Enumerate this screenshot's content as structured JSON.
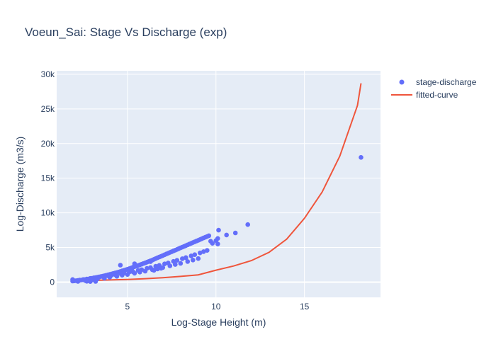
{
  "chart_data": {
    "type": "scatter",
    "title": "Voeun_Sai: Stage Vs Discharge (exp)",
    "xlabel": "Log-Stage Height (m)",
    "ylabel": "Log-Discharge (m3/s)",
    "xlim": [
      1.0,
      19.3
    ],
    "ylim": [
      -2200,
      30500
    ],
    "xticks": [
      5,
      10,
      15
    ],
    "xtick_labels": [
      "5",
      "10",
      "15"
    ],
    "yticks": [
      0,
      5000,
      10000,
      15000,
      20000,
      25000,
      30000
    ],
    "ytick_labels": [
      "0",
      "5k",
      "10k",
      "15k",
      "20k",
      "25k",
      "30k"
    ],
    "grid": true,
    "legend_position": "top-right",
    "colors": {
      "scatter": "#636efa",
      "line": "#ef553b",
      "plot_bg": "#e5ecf6",
      "grid": "#ffffff"
    },
    "series": [
      {
        "name": "stage-discharge",
        "type": "scatter",
        "x": [
          1.9,
          2.0,
          2.1,
          2.2,
          2.3,
          2.4,
          2.5,
          2.6,
          2.7,
          2.8,
          2.9,
          3.0,
          3.1,
          3.2,
          3.3,
          3.4,
          3.5,
          3.6,
          3.7,
          3.8,
          3.9,
          4.0,
          4.1,
          4.2,
          4.3,
          4.4,
          4.5,
          4.6,
          4.7,
          4.8,
          4.9,
          5.0,
          5.1,
          5.2,
          5.3,
          5.4,
          5.5,
          5.6,
          5.7,
          5.8,
          5.9,
          6.0,
          6.1,
          6.2,
          6.3,
          6.4,
          6.5,
          6.6,
          6.7,
          6.8,
          6.9,
          7.0,
          7.1,
          7.2,
          7.3,
          7.4,
          7.5,
          7.6,
          7.7,
          7.8,
          7.9,
          8.0,
          8.1,
          8.2,
          8.3,
          8.4,
          8.5,
          8.6,
          8.7,
          8.8,
          8.9,
          9.0,
          9.1,
          9.2,
          9.3,
          9.4,
          9.5,
          9.6,
          2.0,
          2.3,
          2.5,
          2.7,
          2.9,
          3.1,
          3.4,
          3.6,
          3.9,
          4.1,
          4.3,
          4.6,
          4.8,
          5.1,
          5.3,
          5.6,
          5.8,
          6.1,
          6.3,
          6.6,
          6.8,
          7.1,
          7.3,
          7.6,
          7.8,
          8.1,
          8.3,
          8.6,
          8.8,
          9.1,
          9.3,
          9.5,
          2.2,
          2.6,
          3.0,
          3.3,
          3.7,
          4.0,
          4.4,
          4.7,
          5.0,
          5.4,
          5.7,
          6.0,
          6.4,
          6.7,
          7.0,
          7.4,
          7.7,
          8.0,
          8.4,
          8.7,
          9.0,
          2.7,
          2.9,
          3.2,
          1.9,
          4.6,
          5.4,
          6.3,
          6.7,
          6.5,
          5.3,
          6.9,
          8.3,
          9.7,
          9.8,
          10.0,
          10.1,
          10.15,
          10.1,
          10.6,
          11.1,
          11.8,
          18.2
        ],
        "y": [
          150,
          180,
          210,
          240,
          270,
          300,
          340,
          380,
          420,
          460,
          500,
          550,
          600,
          650,
          700,
          750,
          810,
          870,
          930,
          990,
          1050,
          1110,
          1180,
          1250,
          1320,
          1390,
          1460,
          1540,
          1620,
          1700,
          1780,
          1860,
          1950,
          2040,
          2130,
          2220,
          2310,
          2400,
          2490,
          2580,
          2680,
          2780,
          2880,
          2980,
          3080,
          3180,
          3290,
          3400,
          3510,
          3620,
          3730,
          3840,
          3950,
          4060,
          4170,
          4280,
          4390,
          4500,
          4610,
          4720,
          4830,
          4940,
          5050,
          5160,
          5270,
          5380,
          5490,
          5600,
          5710,
          5820,
          5930,
          6040,
          6150,
          6260,
          6370,
          6480,
          6590,
          6700,
          200,
          300,
          380,
          450,
          540,
          620,
          720,
          800,
          920,
          1000,
          1090,
          1230,
          1320,
          1450,
          1540,
          1690,
          1800,
          1980,
          2100,
          2290,
          2420,
          2630,
          2770,
          2990,
          3140,
          3380,
          3540,
          3790,
          3960,
          4220,
          4400,
          4580,
          100,
          230,
          330,
          450,
          560,
          700,
          830,
          1000,
          1100,
          1280,
          1450,
          1580,
          1800,
          1960,
          2100,
          2350,
          2540,
          2700,
          2970,
          3190,
          3400,
          120,
          80,
          100,
          380,
          2450,
          2650,
          2950,
          1900,
          1700,
          1500,
          2000,
          3500,
          5900,
          5600,
          6000,
          6300,
          7500,
          5500,
          6800,
          7100,
          8300,
          18000
        ]
      },
      {
        "name": "fitted-curve",
        "type": "line",
        "x": [
          1.9,
          3.0,
          4.0,
          5.0,
          6.0,
          7.0,
          8.0,
          9.0,
          10.0,
          11.0,
          12.0,
          13.0,
          14.0,
          15.0,
          16.0,
          17.0,
          18.0,
          18.2
        ],
        "y": [
          180,
          240,
          310,
          390,
          500,
          640,
          820,
          1050,
          1720,
          2330,
          3100,
          4300,
          6200,
          9200,
          13000,
          18200,
          25500,
          28700
        ]
      }
    ]
  }
}
